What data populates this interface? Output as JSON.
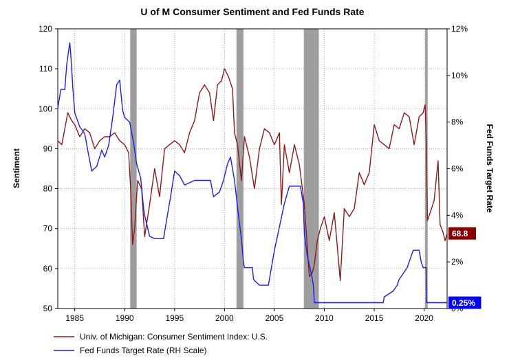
{
  "chart_data": {
    "type": "line",
    "title": "U of M Consumer Sentiment and Fed Funds Rate",
    "xlabel": "",
    "ylabel_left": "Sentiment",
    "ylabel_right": "Fed Funds Target Rate",
    "xlim": [
      1983.3,
      2022.3
    ],
    "ylim_left": [
      50,
      120
    ],
    "ylim_right": [
      0,
      12
    ],
    "x_ticks": [
      1985,
      1990,
      1995,
      2000,
      2005,
      2010,
      2015,
      2020
    ],
    "x_tick_labels": [
      "1985",
      "1990",
      "1995",
      "2000",
      "2005",
      "2010",
      "2015",
      "2020"
    ],
    "y_left_ticks": [
      50,
      60,
      70,
      80,
      90,
      100,
      110,
      120
    ],
    "y_left_tick_labels": [
      "50",
      "60",
      "70",
      "80",
      "90",
      "100",
      "110",
      "120"
    ],
    "y_right_ticks": [
      0,
      2,
      4,
      6,
      8,
      10,
      12
    ],
    "y_right_tick_labels": [
      "0%",
      "2%",
      "4%",
      "6%",
      "8%",
      "10%",
      "12%"
    ],
    "grid": true,
    "recessions": [
      [
        1990.55,
        1991.2
      ],
      [
        2001.2,
        2001.9
      ],
      [
        2007.95,
        2009.45
      ],
      [
        2020.1,
        2020.35
      ]
    ],
    "series": [
      {
        "name": "Univ. of Michigan: Consumer Sentiment Index: U.S.",
        "axis": "left",
        "color": "#8b1a1a",
        "points": [
          [
            1983.3,
            92
          ],
          [
            1983.7,
            91
          ],
          [
            1984.0,
            95
          ],
          [
            1984.3,
            99
          ],
          [
            1984.7,
            97
          ],
          [
            1985.0,
            96
          ],
          [
            1985.5,
            93
          ],
          [
            1986.0,
            95
          ],
          [
            1986.5,
            94
          ],
          [
            1987.0,
            90
          ],
          [
            1987.5,
            92
          ],
          [
            1988.0,
            93
          ],
          [
            1988.5,
            93
          ],
          [
            1989.0,
            94
          ],
          [
            1989.5,
            92
          ],
          [
            1990.0,
            91
          ],
          [
            1990.4,
            89
          ],
          [
            1990.6,
            80
          ],
          [
            1990.8,
            66
          ],
          [
            1991.0,
            70
          ],
          [
            1991.3,
            82
          ],
          [
            1991.7,
            80
          ],
          [
            1992.0,
            68
          ],
          [
            1992.5,
            76
          ],
          [
            1993.0,
            85
          ],
          [
            1993.5,
            78
          ],
          [
            1994.0,
            90
          ],
          [
            1994.5,
            91
          ],
          [
            1995.0,
            92
          ],
          [
            1995.5,
            91
          ],
          [
            1996.0,
            89
          ],
          [
            1996.5,
            94
          ],
          [
            1997.0,
            97
          ],
          [
            1997.5,
            104
          ],
          [
            1998.0,
            106
          ],
          [
            1998.5,
            104
          ],
          [
            1998.9,
            97
          ],
          [
            1999.3,
            106
          ],
          [
            1999.7,
            107
          ],
          [
            2000.0,
            110
          ],
          [
            2000.4,
            108
          ],
          [
            2000.8,
            105
          ],
          [
            2001.0,
            94
          ],
          [
            2001.3,
            91
          ],
          [
            2001.7,
            82
          ],
          [
            2002.0,
            93
          ],
          [
            2002.5,
            88
          ],
          [
            2003.0,
            80
          ],
          [
            2003.5,
            90
          ],
          [
            2004.0,
            95
          ],
          [
            2004.5,
            94
          ],
          [
            2005.0,
            91
          ],
          [
            2005.5,
            94
          ],
          [
            2005.7,
            76
          ],
          [
            2006.0,
            91
          ],
          [
            2006.5,
            84
          ],
          [
            2007.0,
            91
          ],
          [
            2007.5,
            86
          ],
          [
            2008.0,
            76
          ],
          [
            2008.5,
            58
          ],
          [
            2008.8,
            59
          ],
          [
            2009.0,
            61
          ],
          [
            2009.3,
            67
          ],
          [
            2009.6,
            70
          ],
          [
            2010.0,
            73
          ],
          [
            2010.5,
            67
          ],
          [
            2011.0,
            74
          ],
          [
            2011.6,
            57
          ],
          [
            2012.0,
            75
          ],
          [
            2012.5,
            73
          ],
          [
            2013.0,
            75
          ],
          [
            2013.5,
            84
          ],
          [
            2014.0,
            81
          ],
          [
            2014.5,
            84
          ],
          [
            2015.0,
            96
          ],
          [
            2015.5,
            92
          ],
          [
            2016.0,
            91
          ],
          [
            2016.5,
            90
          ],
          [
            2017.0,
            96
          ],
          [
            2017.5,
            95
          ],
          [
            2018.0,
            99
          ],
          [
            2018.5,
            98
          ],
          [
            2019.0,
            91
          ],
          [
            2019.5,
            98
          ],
          [
            2019.9,
            99
          ],
          [
            2020.1,
            101
          ],
          [
            2020.25,
            89
          ],
          [
            2020.33,
            72
          ],
          [
            2020.6,
            74
          ],
          [
            2021.0,
            77
          ],
          [
            2021.4,
            87
          ],
          [
            2021.6,
            71
          ],
          [
            2021.9,
            69
          ],
          [
            2022.1,
            67
          ],
          [
            2022.3,
            68.8
          ]
        ]
      },
      {
        "name": "Fed Funds Target Rate (RH Scale)",
        "axis": "right",
        "color": "#1a1aff",
        "points": [
          [
            1983.3,
            8.6
          ],
          [
            1983.6,
            9.4
          ],
          [
            1984.0,
            9.4
          ],
          [
            1984.2,
            10.5
          ],
          [
            1984.5,
            11.4
          ],
          [
            1984.6,
            10.9
          ],
          [
            1984.8,
            9.5
          ],
          [
            1985.0,
            8.4
          ],
          [
            1985.5,
            7.8
          ],
          [
            1986.0,
            7.5
          ],
          [
            1986.3,
            6.8
          ],
          [
            1986.7,
            5.9
          ],
          [
            1987.2,
            6.1
          ],
          [
            1987.7,
            6.8
          ],
          [
            1988.0,
            6.5
          ],
          [
            1988.4,
            7.0
          ],
          [
            1988.8,
            8.2
          ],
          [
            1989.2,
            9.6
          ],
          [
            1989.5,
            9.8
          ],
          [
            1989.8,
            8.5
          ],
          [
            1990.0,
            8.2
          ],
          [
            1990.5,
            8.0
          ],
          [
            1990.9,
            7.1
          ],
          [
            1991.2,
            6.2
          ],
          [
            1991.6,
            5.6
          ],
          [
            1991.9,
            4.3
          ],
          [
            1992.0,
            4.0
          ],
          [
            1992.5,
            3.1
          ],
          [
            1993.0,
            3.0
          ],
          [
            1993.9,
            3.0
          ],
          [
            1994.2,
            3.8
          ],
          [
            1994.6,
            4.8
          ],
          [
            1995.0,
            5.9
          ],
          [
            1995.5,
            5.7
          ],
          [
            1996.0,
            5.3
          ],
          [
            1997.0,
            5.5
          ],
          [
            1998.6,
            5.5
          ],
          [
            1998.9,
            4.8
          ],
          [
            1999.5,
            5.0
          ],
          [
            1999.9,
            5.5
          ],
          [
            2000.3,
            6.2
          ],
          [
            2000.6,
            6.5
          ],
          [
            2001.0,
            5.5
          ],
          [
            2001.4,
            4.0
          ],
          [
            2001.7,
            3.0
          ],
          [
            2001.9,
            2.0
          ],
          [
            2002.0,
            1.75
          ],
          [
            2002.8,
            1.75
          ],
          [
            2002.9,
            1.25
          ],
          [
            2003.5,
            1.0
          ],
          [
            2004.4,
            1.0
          ],
          [
            2004.6,
            1.5
          ],
          [
            2005.0,
            2.5
          ],
          [
            2005.5,
            3.5
          ],
          [
            2006.0,
            4.5
          ],
          [
            2006.5,
            5.25
          ],
          [
            2007.6,
            5.25
          ],
          [
            2007.9,
            4.5
          ],
          [
            2008.0,
            3.2
          ],
          [
            2008.3,
            2.25
          ],
          [
            2008.7,
            1.5
          ],
          [
            2008.9,
            1.0
          ],
          [
            2009.0,
            0.25
          ],
          [
            2015.9,
            0.25
          ],
          [
            2016.0,
            0.5
          ],
          [
            2016.9,
            0.75
          ],
          [
            2017.3,
            1.0
          ],
          [
            2017.5,
            1.25
          ],
          [
            2017.9,
            1.5
          ],
          [
            2018.3,
            1.75
          ],
          [
            2018.7,
            2.25
          ],
          [
            2018.9,
            2.5
          ],
          [
            2019.5,
            2.5
          ],
          [
            2019.7,
            2.0
          ],
          [
            2019.9,
            1.75
          ],
          [
            2020.2,
            1.75
          ],
          [
            2020.25,
            0.25
          ],
          [
            2022.3,
            0.25
          ]
        ]
      }
    ],
    "end_labels": [
      {
        "series": 0,
        "text": "68.8",
        "color": "#8b0000"
      },
      {
        "series": 1,
        "text": "0.25%",
        "color": "#0000ff"
      }
    ]
  },
  "legend": {
    "items": [
      {
        "label": "Univ. of Michigan: Consumer Sentiment Index: U.S.",
        "color": "#8b1a1a"
      },
      {
        "label": "Fed Funds Target Rate (RH Scale)",
        "color": "#1a1aff"
      }
    ]
  }
}
